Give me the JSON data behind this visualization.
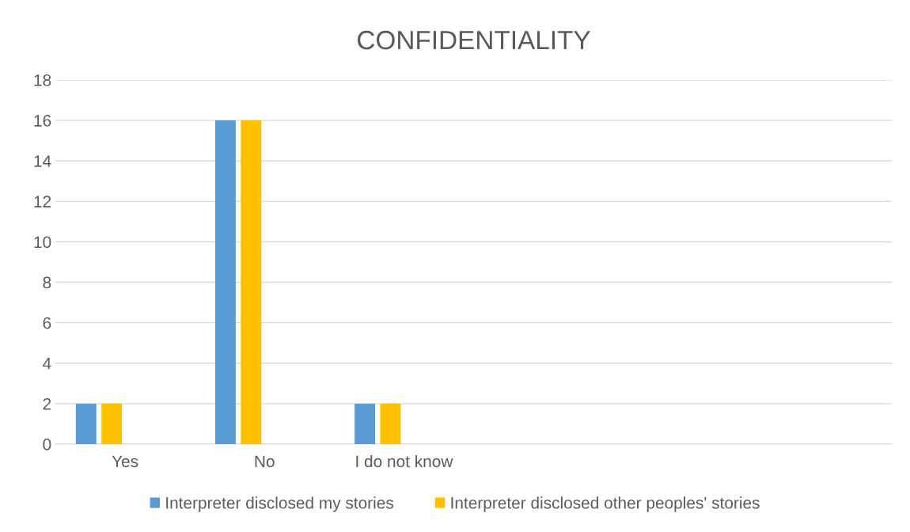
{
  "chart_data": {
    "type": "bar",
    "title": "CONFIDENTIALITY",
    "categories": [
      "Yes",
      "No",
      "I do not know",
      null,
      null,
      null
    ],
    "series": [
      {
        "name": "Interpreter disclosed my stories",
        "color": "#5b9bd5",
        "values": [
          2,
          16,
          2,
          null,
          null,
          null
        ]
      },
      {
        "name": "Interpreter disclosed other peoples' stories",
        "color": "#ffc000",
        "values": [
          2,
          16,
          2,
          null,
          null,
          null
        ]
      }
    ],
    "ylim": [
      0,
      18
    ],
    "yticks": [
      0,
      2,
      4,
      6,
      8,
      10,
      12,
      14,
      16,
      18
    ],
    "grid": "y",
    "legend": "bottom"
  }
}
